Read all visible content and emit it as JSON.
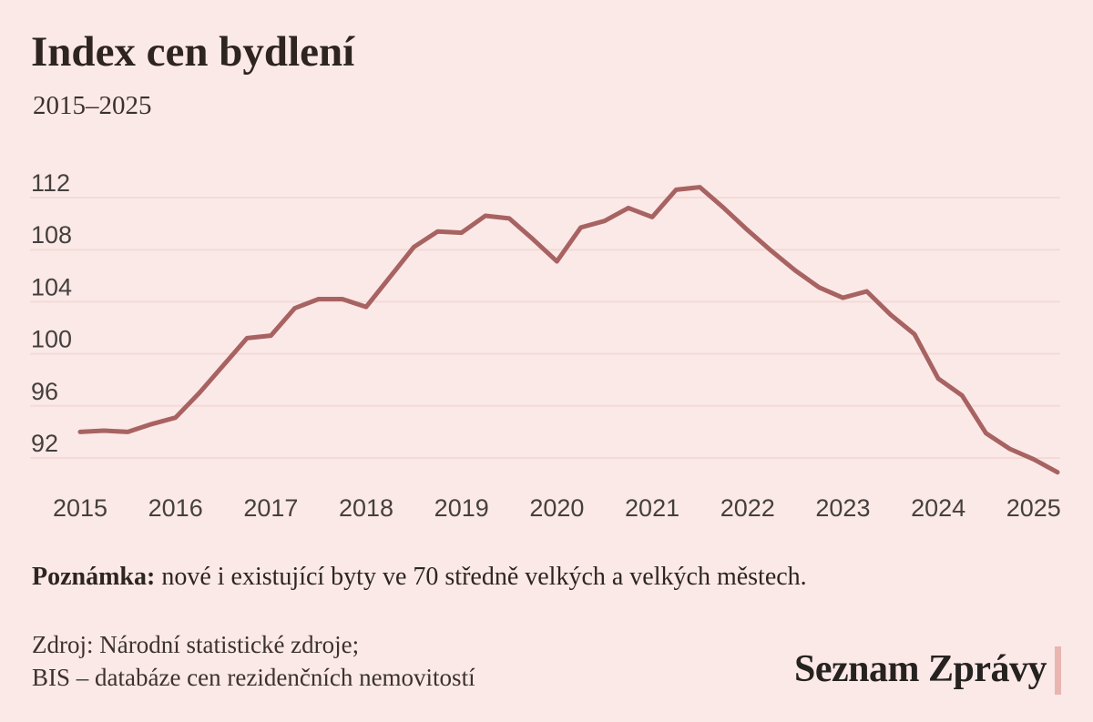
{
  "header": {
    "title": "Index cen bydlení",
    "subtitle": "2015–2025"
  },
  "chart_data": {
    "type": "line",
    "title": "Index cen bydlení",
    "subtitle": "2015–2025",
    "x_unit": "quarter",
    "x": [
      "2015Q1",
      "2015Q2",
      "2015Q3",
      "2015Q4",
      "2016Q1",
      "2016Q2",
      "2016Q3",
      "2016Q4",
      "2017Q1",
      "2017Q2",
      "2017Q3",
      "2017Q4",
      "2018Q1",
      "2018Q2",
      "2018Q3",
      "2018Q4",
      "2019Q1",
      "2019Q2",
      "2019Q3",
      "2019Q4",
      "2020Q1",
      "2020Q2",
      "2020Q3",
      "2020Q4",
      "2021Q1",
      "2021Q2",
      "2021Q3",
      "2021Q4",
      "2022Q1",
      "2022Q2",
      "2022Q3",
      "2022Q4",
      "2023Q1",
      "2023Q2",
      "2023Q3",
      "2023Q4",
      "2024Q1",
      "2024Q2",
      "2024Q3",
      "2024Q4",
      "2025Q1",
      "2025Q2"
    ],
    "series": [
      {
        "name": "Index cen bydlení",
        "values": [
          94.0,
          94.1,
          94.0,
          94.6,
          95.1,
          97.0,
          99.1,
          101.2,
          101.4,
          103.5,
          104.2,
          104.2,
          103.6,
          105.9,
          108.2,
          109.4,
          109.3,
          110.6,
          110.4,
          108.8,
          107.1,
          109.7,
          110.2,
          111.2,
          110.5,
          112.6,
          112.8,
          111.2,
          109.5,
          107.9,
          106.4,
          105.1,
          104.3,
          104.8,
          103.0,
          101.5,
          98.1,
          96.8,
          93.9,
          92.7,
          91.9,
          90.9
        ]
      }
    ],
    "x_tick_labels": [
      "2015",
      "2016",
      "2017",
      "2018",
      "2019",
      "2020",
      "2021",
      "2022",
      "2023",
      "2024",
      "2025"
    ],
    "y_tick_labels": [
      112,
      108,
      104,
      100,
      96,
      92
    ],
    "ylim": [
      89.5,
      113.5
    ],
    "grid": "horizontal",
    "legend": "none",
    "line_color": "#a76362",
    "grid_color": "#f4dad7",
    "tick_color": "#45403d"
  },
  "note": {
    "label": "Poznámka:",
    "text": " nové i existující byty ve 70 středně velkých a velkých městech."
  },
  "source": {
    "line1": "Zdroj: Národní statistické zdroje;",
    "line2": "BIS – databáze cen rezidenčních nemovitostí"
  },
  "logo": {
    "text": "Seznam Zprávy",
    "bar_color": "#e9b5b1"
  },
  "colors": {
    "background": "#fbe9e7",
    "title": "#2e2420",
    "subtitle": "#3c312c",
    "note": "#2d2522",
    "source": "#3c322d",
    "logo_text": "#262220"
  }
}
